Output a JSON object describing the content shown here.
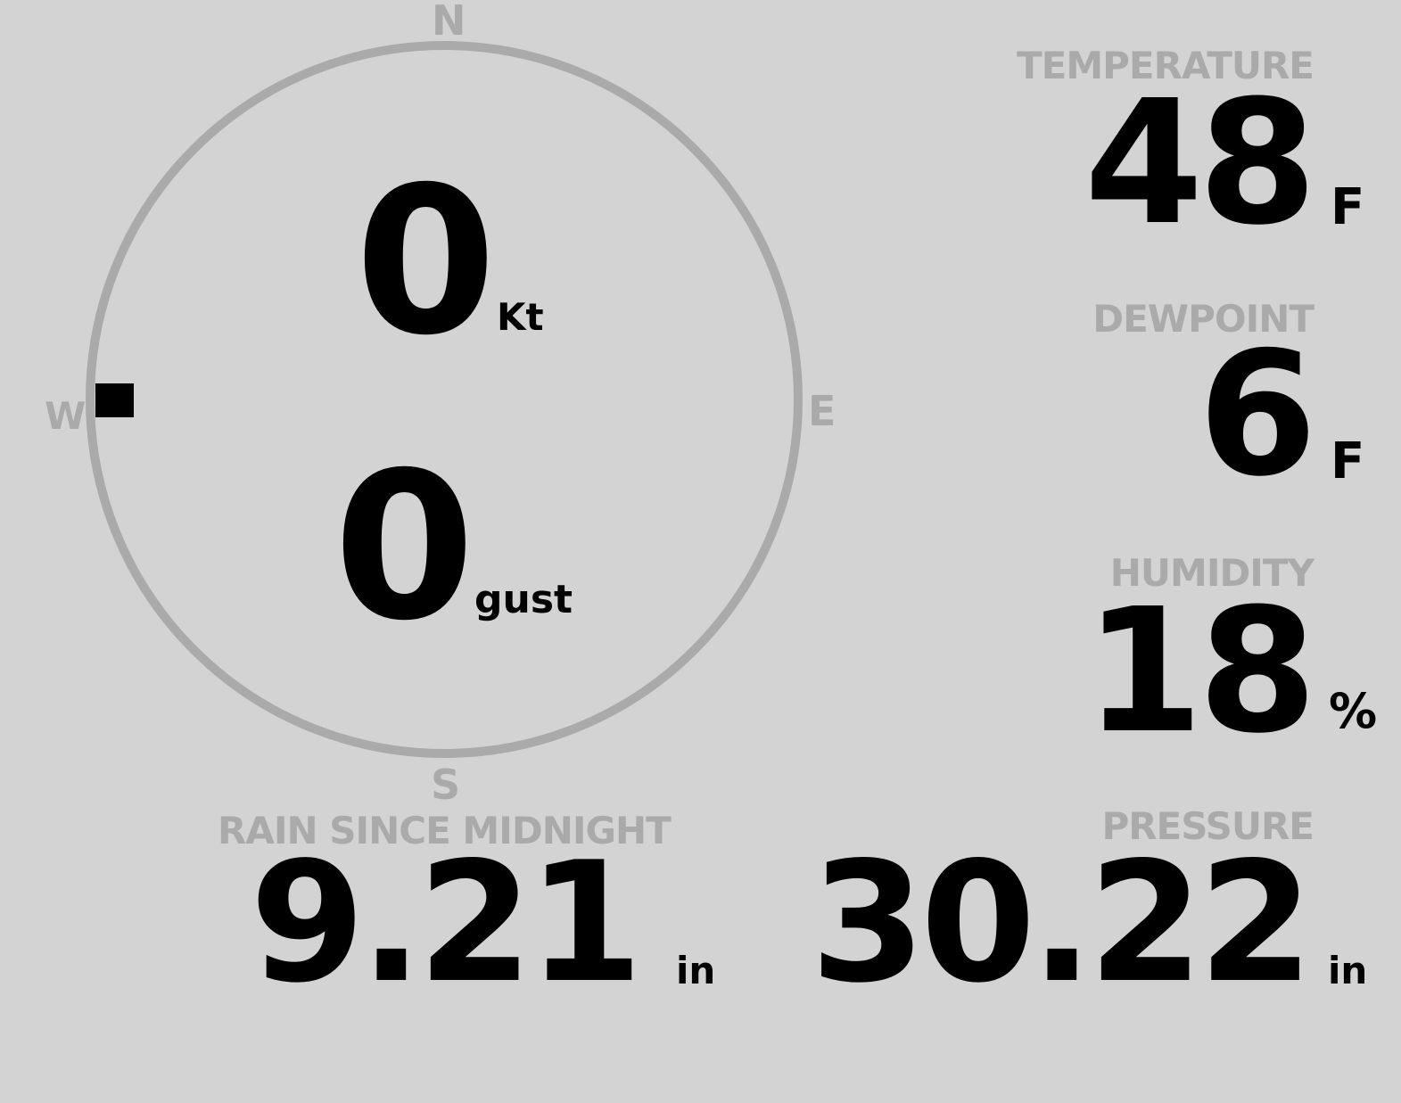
{
  "compass": {
    "north": "N",
    "south": "S",
    "east": "E",
    "west": "W",
    "ring_color": "#aaaaaa",
    "wind_direction_marker": "W"
  },
  "wind": {
    "speed": "0",
    "speed_unit": "Kt",
    "gust": "0",
    "gust_unit": "gust"
  },
  "temperature": {
    "label": "TEMPERATURE",
    "value": "48",
    "unit": "F"
  },
  "dewpoint": {
    "label": "DEWPOINT",
    "value": "6",
    "unit": "F"
  },
  "humidity": {
    "label": "HUMIDITY",
    "value": "18",
    "unit": "%"
  },
  "rain": {
    "label": "RAIN SINCE MIDNIGHT",
    "value": "9.21",
    "unit": "in"
  },
  "pressure": {
    "label": "PRESSURE",
    "value": "30.22",
    "unit": "in"
  },
  "colors": {
    "background": "#d3d3d3",
    "label": "#aaaaaa",
    "value": "#000000"
  }
}
